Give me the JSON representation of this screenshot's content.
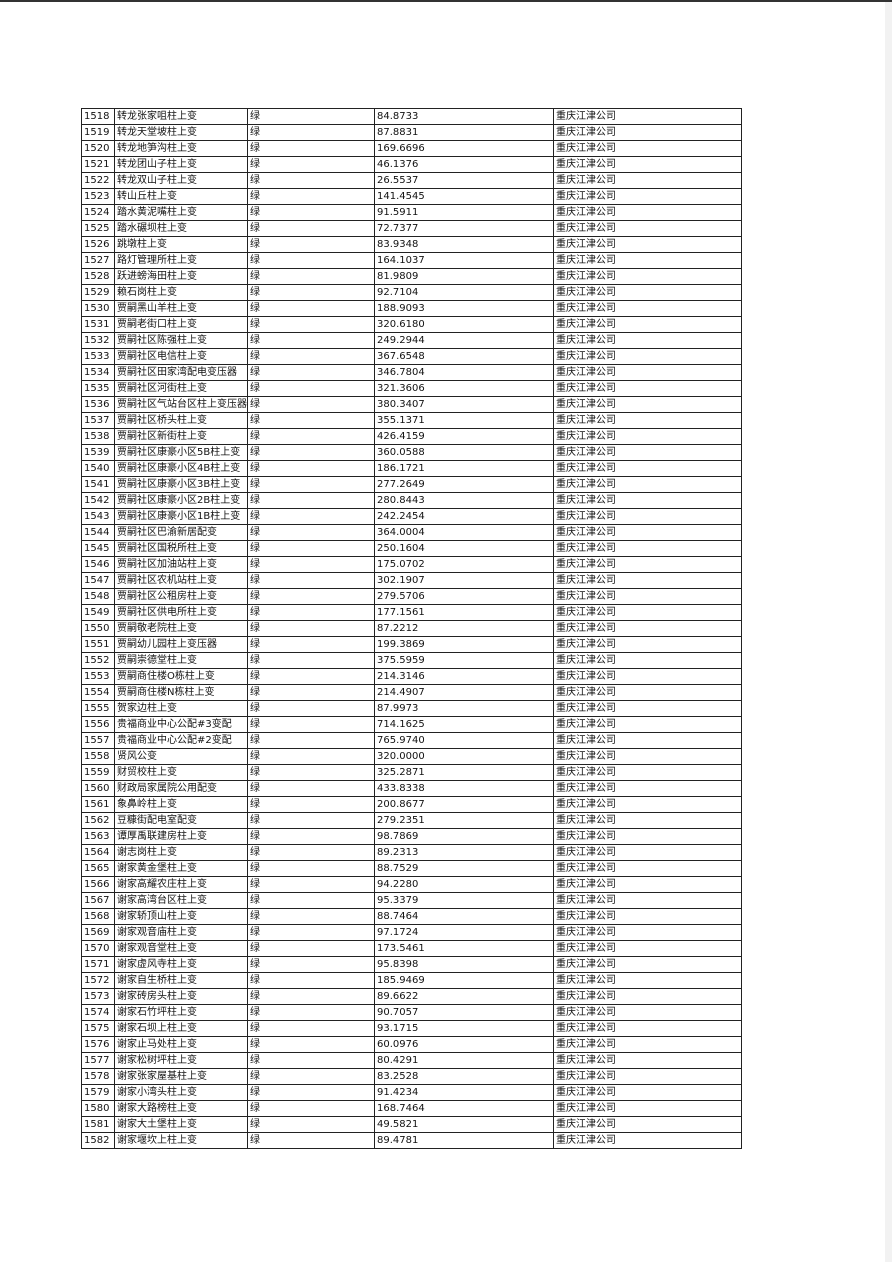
{
  "table": {
    "rows": [
      [
        "1518",
        "转龙张家咀柱上变",
        "绿",
        "84.8733",
        "重庆江津公司"
      ],
      [
        "1519",
        "转龙天堂坡柱上变",
        "绿",
        "87.8831",
        "重庆江津公司"
      ],
      [
        "1520",
        "转龙地笋沟柱上变",
        "绿",
        "169.6696",
        "重庆江津公司"
      ],
      [
        "1521",
        "转龙团山子柱上变",
        "绿",
        "46.1376",
        "重庆江津公司"
      ],
      [
        "1522",
        "转龙双山子柱上变",
        "绿",
        "26.5537",
        "重庆江津公司"
      ],
      [
        "1523",
        "转山丘柱上变",
        "绿",
        "141.4545",
        "重庆江津公司"
      ],
      [
        "1524",
        "踏水黄泥嘴柱上变",
        "绿",
        "91.5911",
        "重庆江津公司"
      ],
      [
        "1525",
        "踏水碾坝柱上变",
        "绿",
        "72.7377",
        "重庆江津公司"
      ],
      [
        "1526",
        "跳墩柱上变",
        "绿",
        "83.9348",
        "重庆江津公司"
      ],
      [
        "1527",
        "路灯管理所柱上变",
        "绿",
        "164.1037",
        "重庆江津公司"
      ],
      [
        "1528",
        "跃进螃海田柱上变",
        "绿",
        "81.9809",
        "重庆江津公司"
      ],
      [
        "1529",
        "赖石岗柱上变",
        "绿",
        "92.7104",
        "重庆江津公司"
      ],
      [
        "1530",
        "贾嗣黑山羊柱上变",
        "绿",
        "188.9093",
        "重庆江津公司"
      ],
      [
        "1531",
        "贾嗣老街口柱上变",
        "绿",
        "320.6180",
        "重庆江津公司"
      ],
      [
        "1532",
        "贾嗣社区陈强柱上变",
        "绿",
        "249.2944",
        "重庆江津公司"
      ],
      [
        "1533",
        "贾嗣社区电信柱上变",
        "绿",
        "367.6548",
        "重庆江津公司"
      ],
      [
        "1534",
        "贾嗣社区田家湾配电变压器",
        "绿",
        "346.7804",
        "重庆江津公司"
      ],
      [
        "1535",
        "贾嗣社区河街柱上变",
        "绿",
        "321.3606",
        "重庆江津公司"
      ],
      [
        "1536",
        "贾嗣社区气站台区柱上变压器",
        "绿",
        "380.3407",
        "重庆江津公司"
      ],
      [
        "1537",
        "贾嗣社区桥头柱上变",
        "绿",
        "355.1371",
        "重庆江津公司"
      ],
      [
        "1538",
        "贾嗣社区新街柱上变",
        "绿",
        "426.4159",
        "重庆江津公司"
      ],
      [
        "1539",
        "贾嗣社区康豪小区5B柱上变",
        "绿",
        "360.0588",
        "重庆江津公司"
      ],
      [
        "1540",
        "贾嗣社区康豪小区4B柱上变",
        "绿",
        "186.1721",
        "重庆江津公司"
      ],
      [
        "1541",
        "贾嗣社区康豪小区3B柱上变",
        "绿",
        "277.2649",
        "重庆江津公司"
      ],
      [
        "1542",
        "贾嗣社区康豪小区2B柱上变",
        "绿",
        "280.8443",
        "重庆江津公司"
      ],
      [
        "1543",
        "贾嗣社区康豪小区1B柱上变",
        "绿",
        "242.2454",
        "重庆江津公司"
      ],
      [
        "1544",
        "贾嗣社区巴渝新居配变",
        "绿",
        "364.0004",
        "重庆江津公司"
      ],
      [
        "1545",
        "贾嗣社区国税所柱上变",
        "绿",
        "250.1604",
        "重庆江津公司"
      ],
      [
        "1546",
        "贾嗣社区加油站柱上变",
        "绿",
        "175.0702",
        "重庆江津公司"
      ],
      [
        "1547",
        "贾嗣社区农机站柱上变",
        "绿",
        "302.1907",
        "重庆江津公司"
      ],
      [
        "1548",
        "贾嗣社区公租房柱上变",
        "绿",
        "279.5706",
        "重庆江津公司"
      ],
      [
        "1549",
        "贾嗣社区供电所柱上变",
        "绿",
        "177.1561",
        "重庆江津公司"
      ],
      [
        "1550",
        "贾嗣敬老院柱上变",
        "绿",
        "87.2212",
        "重庆江津公司"
      ],
      [
        "1551",
        "贾嗣幼儿园柱上变压器",
        "绿",
        "199.3869",
        "重庆江津公司"
      ],
      [
        "1552",
        "贾嗣崇德堂柱上变",
        "绿",
        "375.5959",
        "重庆江津公司"
      ],
      [
        "1553",
        "贾嗣商住楼O栋柱上变",
        "绿",
        "214.3146",
        "重庆江津公司"
      ],
      [
        "1554",
        "贾嗣商住楼N栋柱上变",
        "绿",
        "214.4907",
        "重庆江津公司"
      ],
      [
        "1555",
        "贺家边柱上变",
        "绿",
        "87.9973",
        "重庆江津公司"
      ],
      [
        "1556",
        "贵福商业中心公配#3变配",
        "绿",
        "714.1625",
        "重庆江津公司"
      ],
      [
        "1557",
        "贵福商业中心公配#2变配",
        "绿",
        "765.9740",
        "重庆江津公司"
      ],
      [
        "1558",
        "贤风公变",
        "绿",
        "320.0000",
        "重庆江津公司"
      ],
      [
        "1559",
        "财贸校柱上变",
        "绿",
        "325.2871",
        "重庆江津公司"
      ],
      [
        "1560",
        "财政局家属院公用配变",
        "绿",
        "433.8338",
        "重庆江津公司"
      ],
      [
        "1561",
        "象鼻岭柱上变",
        "绿",
        "200.8677",
        "重庆江津公司"
      ],
      [
        "1562",
        "豆糠街配电室配变",
        "绿",
        "279.2351",
        "重庆江津公司"
      ],
      [
        "1563",
        "谭厚禹联建房柱上变",
        "绿",
        "98.7869",
        "重庆江津公司"
      ],
      [
        "1564",
        "谢志岗柱上变",
        "绿",
        "89.2313",
        "重庆江津公司"
      ],
      [
        "1565",
        "谢家黄金堡柱上变",
        "绿",
        "88.7529",
        "重庆江津公司"
      ],
      [
        "1566",
        "谢家高耀农庄柱上变",
        "绿",
        "94.2280",
        "重庆江津公司"
      ],
      [
        "1567",
        "谢家高湾台区柱上变",
        "绿",
        "95.3379",
        "重庆江津公司"
      ],
      [
        "1568",
        "谢家轿顶山柱上变",
        "绿",
        "88.7464",
        "重庆江津公司"
      ],
      [
        "1569",
        "谢家观音庙柱上变",
        "绿",
        "97.1724",
        "重庆江津公司"
      ],
      [
        "1570",
        "谢家观音堂柱上变",
        "绿",
        "173.5461",
        "重庆江津公司"
      ],
      [
        "1571",
        "谢家虚风寺柱上变",
        "绿",
        "95.8398",
        "重庆江津公司"
      ],
      [
        "1572",
        "谢家自生桥柱上变",
        "绿",
        "185.9469",
        "重庆江津公司"
      ],
      [
        "1573",
        "谢家砖房头柱上变",
        "绿",
        "89.6622",
        "重庆江津公司"
      ],
      [
        "1574",
        "谢家石竹坪柱上变",
        "绿",
        "90.7057",
        "重庆江津公司"
      ],
      [
        "1575",
        "谢家石坝上柱上变",
        "绿",
        "93.1715",
        "重庆江津公司"
      ],
      [
        "1576",
        "谢家止马处柱上变",
        "绿",
        "60.0976",
        "重庆江津公司"
      ],
      [
        "1577",
        "谢家松树坪柱上变",
        "绿",
        "80.4291",
        "重庆江津公司"
      ],
      [
        "1578",
        "谢家张家屋基柱上变",
        "绿",
        "83.2528",
        "重庆江津公司"
      ],
      [
        "1579",
        "谢家小湾头柱上变",
        "绿",
        "91.4234",
        "重庆江津公司"
      ],
      [
        "1580",
        "谢家大路榜柱上变",
        "绿",
        "168.7464",
        "重庆江津公司"
      ],
      [
        "1581",
        "谢家大土堡柱上变",
        "绿",
        "49.5821",
        "重庆江津公司"
      ],
      [
        "1582",
        "谢家堰坎上柱上变",
        "绿",
        "89.4781",
        "重庆江津公司"
      ]
    ]
  }
}
